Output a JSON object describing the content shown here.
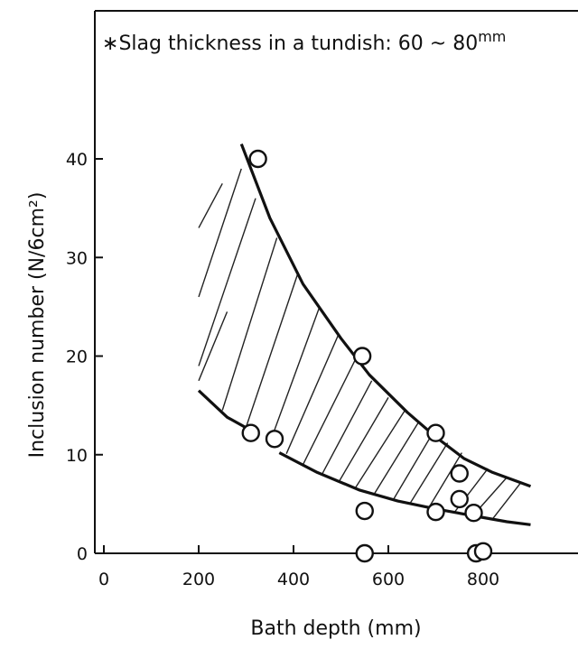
{
  "chart_data": {
    "type": "scatter",
    "title": "",
    "xlabel": "Bath depth (mm)",
    "ylabel": "Inclusion number (N/6cm²)",
    "xlim": [
      0,
      900
    ],
    "ylim": [
      0,
      50
    ],
    "xticks": [
      0,
      200,
      400,
      600,
      800
    ],
    "yticks": [
      0,
      10,
      20,
      30,
      40
    ],
    "grid": false,
    "annotation": {
      "prefix": "∗",
      "text": "Slag thickness in a tundish: 60 ~ 80",
      "superscript": "mm"
    },
    "points": [
      {
        "x": 325,
        "y": 40
      },
      {
        "x": 310,
        "y": 12.2
      },
      {
        "x": 360,
        "y": 11.6
      },
      {
        "x": 545,
        "y": 20
      },
      {
        "x": 550,
        "y": 4.3
      },
      {
        "x": 550,
        "y": 0
      },
      {
        "x": 700,
        "y": 12.2
      },
      {
        "x": 700,
        "y": 4.2
      },
      {
        "x": 750,
        "y": 8.1
      },
      {
        "x": 750,
        "y": 5.5
      },
      {
        "x": 780,
        "y": 4.1
      },
      {
        "x": 785,
        "y": 0
      },
      {
        "x": 800,
        "y": 0.2
      }
    ],
    "bands": {
      "upper_curve": [
        [
          290,
          41.5
        ],
        [
          350,
          34
        ],
        [
          420,
          27.3
        ],
        [
          500,
          21.8
        ],
        [
          560,
          18.1
        ],
        [
          640,
          14.3
        ],
        [
          700,
          11.8
        ],
        [
          760,
          9.6
        ],
        [
          820,
          8.2
        ],
        [
          900,
          6.8
        ]
      ],
      "lower_curve": [
        [
          200,
          16.5
        ],
        [
          260,
          13.8
        ],
        [
          320,
          12.2
        ]
      ],
      "lower_curve_2": [
        [
          370,
          10.2
        ],
        [
          450,
          8.2
        ],
        [
          540,
          6.4
        ],
        [
          620,
          5.3
        ],
        [
          700,
          4.5
        ],
        [
          780,
          3.8
        ],
        [
          850,
          3.2
        ],
        [
          900,
          2.9
        ]
      ],
      "hatch_lines": [
        [
          [
            200,
            17.5
          ],
          [
            260,
            24.5
          ]
        ],
        [
          [
            200,
            33
          ],
          [
            250,
            37.5
          ]
        ],
        [
          [
            200,
            26
          ],
          [
            290,
            39
          ]
        ],
        [
          [
            200,
            19
          ],
          [
            320,
            36
          ]
        ],
        [
          [
            250,
            14.5
          ],
          [
            365,
            32
          ]
        ],
        [
          [
            300,
            12.8
          ],
          [
            410,
            28.5
          ]
        ],
        [
          [
            350,
            11.2
          ],
          [
            455,
            25
          ]
        ],
        [
          [
            385,
            10.1
          ],
          [
            495,
            22.2
          ]
        ],
        [
          [
            420,
            9
          ],
          [
            530,
            19.6
          ]
        ],
        [
          [
            460,
            8
          ],
          [
            565,
            17.5
          ]
        ],
        [
          [
            495,
            7.2
          ],
          [
            600,
            15.8
          ]
        ],
        [
          [
            530,
            6.6
          ],
          [
            635,
            14.5
          ]
        ],
        [
          [
            570,
            6
          ],
          [
            665,
            13.4
          ]
        ],
        [
          [
            610,
            5.4
          ],
          [
            695,
            12.3
          ]
        ],
        [
          [
            645,
            5
          ],
          [
            725,
            11.2
          ]
        ],
        [
          [
            685,
            4.6
          ],
          [
            755,
            10.2
          ]
        ],
        [
          [
            740,
            4.2
          ],
          [
            810,
            8.6
          ]
        ],
        [
          [
            780,
            3.9
          ],
          [
            850,
            7.7
          ]
        ],
        [
          [
            820,
            3.5
          ],
          [
            880,
            7.2
          ]
        ]
      ]
    }
  }
}
